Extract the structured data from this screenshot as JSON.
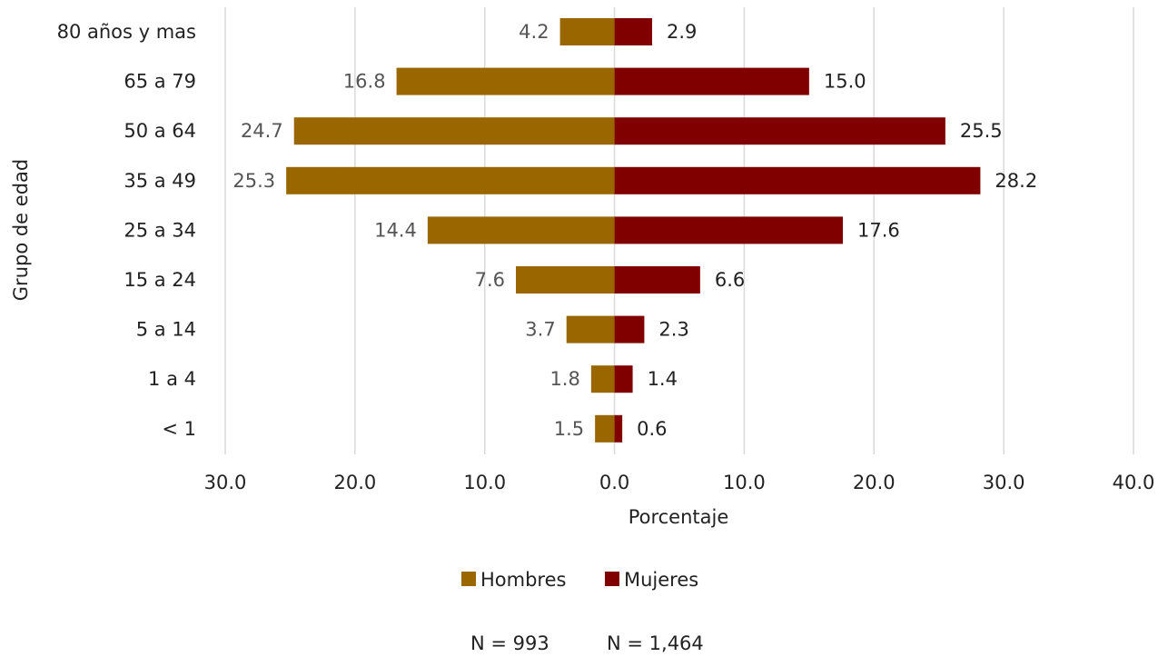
{
  "chart_data": {
    "type": "bar",
    "orientation": "horizontal",
    "layout": "population-pyramid",
    "categories": [
      "80 años y mas",
      "65 a 79",
      "50 a 64",
      "35 a 49",
      "25 a 34",
      "15 a 24",
      "5 a 14",
      "1 a 4",
      "< 1"
    ],
    "series": [
      {
        "name": "Hombres",
        "color": "#996600",
        "side": "left",
        "values": [
          4.2,
          16.8,
          24.7,
          25.3,
          14.4,
          7.6,
          3.7,
          1.8,
          1.5
        ]
      },
      {
        "name": "Mujeres",
        "color": "#800000",
        "side": "right",
        "values": [
          2.9,
          15.0,
          25.5,
          28.2,
          17.6,
          6.6,
          2.3,
          1.4,
          0.6
        ]
      }
    ],
    "xlim": [
      -30,
      40
    ],
    "x_ticks": [
      -30,
      -20,
      -10,
      0,
      10,
      20,
      30,
      40
    ],
    "x_tick_labels": [
      "30.0",
      "20.0",
      "10.0",
      "0.0",
      "10.0",
      "20.0",
      "30.0",
      "40.0"
    ],
    "xlabel": "Porcentaje",
    "ylabel": "Grupo de edad",
    "grid": "vertical",
    "legend": "bottom-center",
    "notes": [
      "N = 993",
      "N = 1,464"
    ]
  }
}
